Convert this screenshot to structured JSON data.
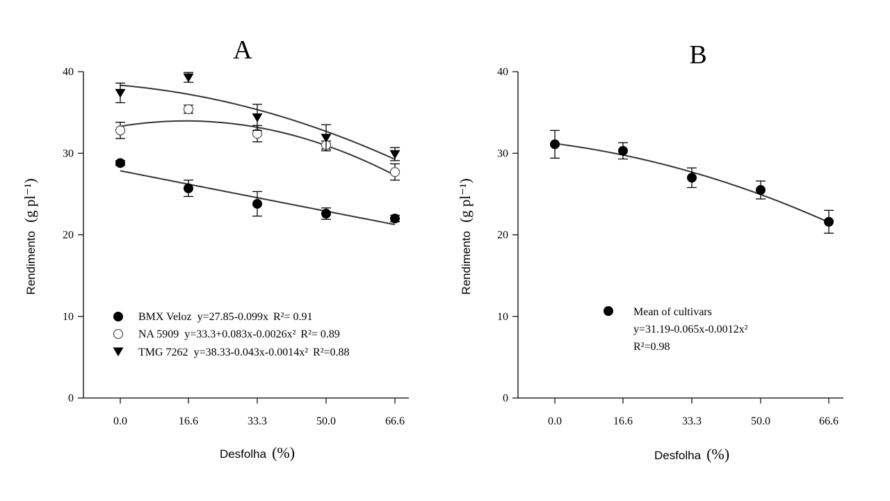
{
  "chart_data": [
    {
      "type": "scatter",
      "panel_label": "A",
      "xlabel": "Desfolha",
      "xlabel_unit": "(%)",
      "ylabel": "Rendimento",
      "ylabel_unit": "(g pl⁻¹)",
      "x_ticks": [
        "0.0",
        "16.6",
        "33.3",
        "50.0",
        "66.6"
      ],
      "y_ticks": [
        "0",
        "10",
        "20",
        "30",
        "40"
      ],
      "ylim": [
        0,
        40
      ],
      "grid": false,
      "legend_position": "bottom-left",
      "series": [
        {
          "name": "BMX Veloz",
          "equation": "y=27.85-0.099x",
          "r2": "R²= 0.91",
          "marker": "filled-circle",
          "color": "#000000",
          "x": [
            0.0,
            16.6,
            33.3,
            50.0,
            66.6
          ],
          "y": [
            28.8,
            25.7,
            23.8,
            22.6,
            22.0
          ],
          "err": [
            0.3,
            1.0,
            1.5,
            0.7,
            0.4
          ],
          "fit": [
            27.85,
            -0.099,
            0
          ]
        },
        {
          "name": "NA 5909",
          "equation": "y=33.3+0.083x-0.0026x²",
          "r2": "R²= 0.89",
          "marker": "open-circle",
          "color": "#000000",
          "x": [
            0.0,
            16.6,
            33.3,
            50.0,
            66.6
          ],
          "y": [
            32.8,
            35.4,
            32.4,
            31.0,
            27.7
          ],
          "err": [
            1.0,
            0.5,
            1.0,
            0.5,
            1.0
          ],
          "fit": [
            33.3,
            0.083,
            -0.0026
          ]
        },
        {
          "name": "TMG 7262",
          "equation": "y=38.33-0.043x-0.0014x²",
          "r2": "R²=0.88",
          "marker": "filled-triangle-down",
          "color": "#000000",
          "x": [
            0.0,
            16.6,
            33.3,
            50.0,
            66.6
          ],
          "y": [
            37.4,
            39.3,
            34.4,
            31.9,
            29.9
          ],
          "err": [
            1.2,
            0.6,
            1.6,
            1.6,
            0.8
          ],
          "fit": [
            38.33,
            -0.043,
            -0.0014
          ]
        }
      ]
    },
    {
      "type": "scatter",
      "panel_label": "B",
      "xlabel": "Desfolha",
      "xlabel_unit": "(%)",
      "ylabel": "Rendimento",
      "ylabel_unit": "(g pl⁻¹)",
      "x_ticks": [
        "0.0",
        "16.6",
        "33.3",
        "50.0",
        "66.6"
      ],
      "y_ticks": [
        "0",
        "10",
        "20",
        "30",
        "40"
      ],
      "ylim": [
        0,
        40
      ],
      "grid": false,
      "legend_position": "center",
      "series": [
        {
          "name": "Mean of cultivars",
          "equation": "y=31.19-0.065x-0.0012x²",
          "r2": "R²=0.98",
          "marker": "filled-circle",
          "color": "#000000",
          "x": [
            0.0,
            16.6,
            33.3,
            50.0,
            66.6
          ],
          "y": [
            31.1,
            30.3,
            27.0,
            25.5,
            21.6
          ],
          "err": [
            1.7,
            1.0,
            1.2,
            1.1,
            1.4
          ],
          "fit": [
            31.19,
            -0.065,
            -0.0012
          ]
        }
      ]
    }
  ]
}
